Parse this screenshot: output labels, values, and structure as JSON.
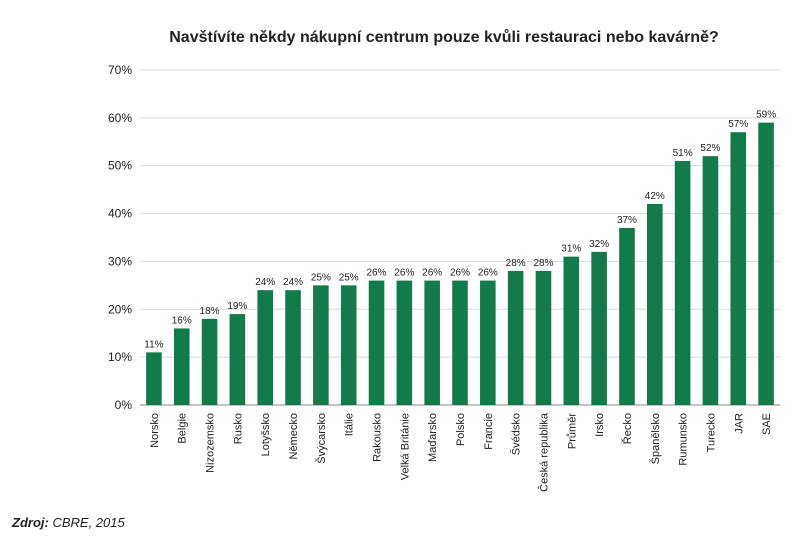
{
  "chart_data": {
    "type": "bar",
    "title": "Navštívíte někdy nákupní centrum pouze kvůli restauraci nebo kavárně?",
    "categories": [
      "Norsko",
      "Belgie",
      "Nizozemsko",
      "Rusko",
      "Lotyšsko",
      "Německo",
      "Švýcarsko",
      "Itálie",
      "Rakousko",
      "Velká Británie",
      "Maďarsko",
      "Polsko",
      "Francie",
      "Švédsko",
      "Česká republika",
      "Průměr",
      "Irsko",
      "Řecko",
      "Španělsko",
      "Rumunsko",
      "Turecko",
      "JAR",
      "SAE"
    ],
    "values": [
      11,
      16,
      18,
      19,
      24,
      24,
      25,
      25,
      26,
      26,
      26,
      26,
      26,
      28,
      28,
      31,
      32,
      37,
      42,
      51,
      52,
      57,
      59
    ],
    "value_labels": [
      "11%",
      "16%",
      "18%",
      "19%",
      "24%",
      "24%",
      "25%",
      "25%",
      "26%",
      "26%",
      "26%",
      "26%",
      "26%",
      "28%",
      "28%",
      "31%",
      "32%",
      "37%",
      "42%",
      "51%",
      "52%",
      "57%",
      "59%"
    ],
    "color": "#137a4b",
    "ylim": [
      0,
      70
    ],
    "yticks": [
      {
        "value": 0,
        "label": "0%"
      },
      {
        "value": 10,
        "label": "10%"
      },
      {
        "value": 20,
        "label": "20%"
      },
      {
        "value": 30,
        "label": "30%"
      },
      {
        "value": 40,
        "label": "40%"
      },
      {
        "value": 50,
        "label": "50%"
      },
      {
        "value": 60,
        "label": "60%"
      },
      {
        "value": 70,
        "label": "70%"
      }
    ],
    "grid": true,
    "source_label": "Zdroj:",
    "source": "CBRE, 2015"
  }
}
